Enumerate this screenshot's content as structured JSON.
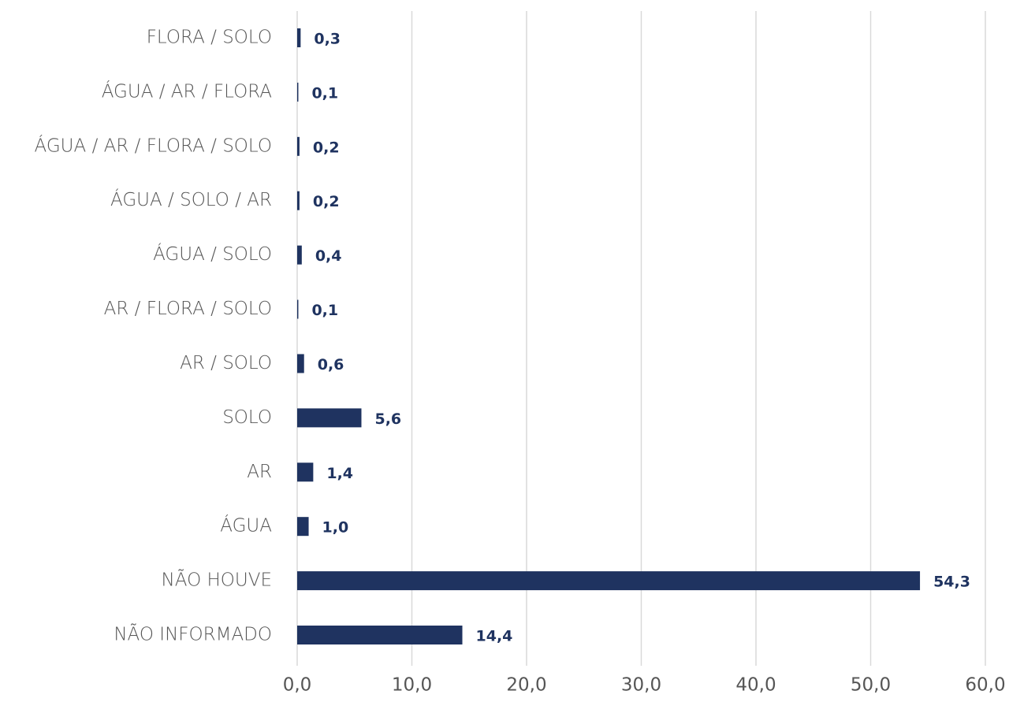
{
  "chart_data": {
    "type": "bar",
    "orientation": "horizontal",
    "categories": [
      "FLORA / SOLO",
      "ÁGUA / AR / FLORA",
      "ÁGUA / AR / FLORA / SOLO",
      "ÁGUA / SOLO / AR",
      "ÁGUA / SOLO",
      "AR / FLORA / SOLO",
      "AR / SOLO",
      "SOLO",
      "AR",
      "ÁGUA",
      "NÃO HOUVE",
      "NÃO INFORMADO"
    ],
    "values": [
      0.3,
      0.1,
      0.2,
      0.2,
      0.4,
      0.1,
      0.6,
      5.6,
      1.4,
      1.0,
      54.3,
      14.4
    ],
    "value_labels": [
      "0,3",
      "0,1",
      "0,2",
      "0,2",
      "0,4",
      "0,1",
      "0,6",
      "5,6",
      "1,4",
      "1,0",
      "54,3",
      "14,4"
    ],
    "color": "#1f3360",
    "xlim": [
      0,
      60
    ],
    "xticks": [
      {
        "value": 0,
        "label": "0,0"
      },
      {
        "value": 10,
        "label": "10,0"
      },
      {
        "value": 20,
        "label": "20,0"
      },
      {
        "value": 30,
        "label": "30,0"
      },
      {
        "value": 40,
        "label": "40,0"
      },
      {
        "value": 50,
        "label": "50,0"
      },
      {
        "value": 60,
        "label": "60,0"
      }
    ],
    "grid": true
  }
}
